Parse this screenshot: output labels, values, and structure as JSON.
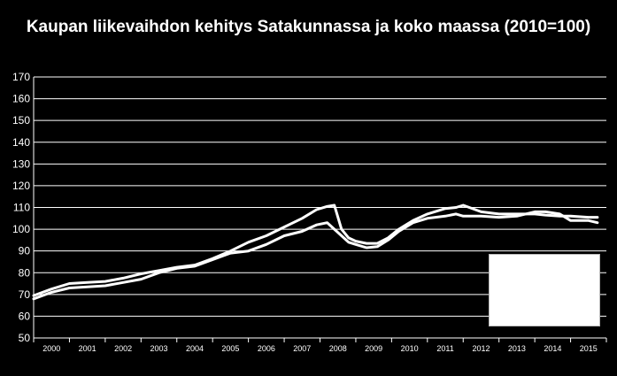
{
  "chart_data": {
    "type": "line",
    "title": "Kaupan liikevaihdon kehitys Satakunnassa ja koko maassa (2010=100)",
    "xlabel": "",
    "ylabel": "",
    "ylim": [
      50,
      170
    ],
    "yticks": [
      "50",
      "60",
      "70",
      "80",
      "90",
      "100",
      "110",
      "120",
      "130",
      "140",
      "150",
      "160",
      "170"
    ],
    "xticks": [
      "2000",
      "2001",
      "2002",
      "2003",
      "2004",
      "2005",
      "2006",
      "2007",
      "2008",
      "2009",
      "2010",
      "2011",
      "2012",
      "2013",
      "2014",
      "2015"
    ],
    "grid": true,
    "legend": "bottom-right",
    "line_color": "#ffffff",
    "series": [
      {
        "x": [
          2000.0,
          2000.5,
          2001.0,
          2001.5,
          2002.0,
          2002.5,
          2003.0,
          2003.5,
          2004.0,
          2004.5,
          2005.0,
          2005.5,
          2006.0,
          2006.5,
          2007.0,
          2007.5,
          2007.9,
          2008.2,
          2008.4,
          2008.6,
          2008.8,
          2009.0,
          2009.3,
          2009.6,
          2009.9,
          2010.2,
          2010.6,
          2011.0,
          2011.5,
          2011.8,
          2012.0,
          2012.5,
          2013.0,
          2013.5,
          2014.0,
          2014.3,
          2014.7,
          2015.0,
          2015.5,
          2015.75
        ],
        "y": [
          68,
          71,
          73,
          73.5,
          74,
          75.5,
          77,
          80,
          82,
          83,
          86,
          89,
          90,
          93,
          97,
          99,
          102,
          103,
          100,
          97,
          94,
          93,
          91.5,
          92,
          95,
          99,
          103,
          105,
          106,
          107,
          106,
          106,
          105.5,
          106,
          108,
          108,
          107,
          104,
          104,
          103
        ]
      },
      {
        "x": [
          2000.0,
          2000.5,
          2001.0,
          2001.5,
          2002.0,
          2002.5,
          2003.0,
          2003.5,
          2004.0,
          2004.5,
          2005.0,
          2005.5,
          2006.0,
          2006.5,
          2007.0,
          2007.5,
          2007.9,
          2008.2,
          2008.4,
          2008.6,
          2008.8,
          2009.0,
          2009.3,
          2009.6,
          2009.9,
          2010.2,
          2010.6,
          2011.0,
          2011.5,
          2011.8,
          2012.0,
          2012.5,
          2013.0,
          2013.5,
          2014.0,
          2014.3,
          2014.7,
          2015.0,
          2015.5,
          2015.75
        ],
        "y": [
          69.5,
          72.5,
          75,
          75.5,
          76,
          77.5,
          79.5,
          81,
          82.5,
          83.5,
          86.5,
          90,
          94,
          97,
          101,
          105,
          109,
          110.5,
          111,
          100,
          96,
          94.5,
          93.5,
          93.5,
          96,
          100,
          104,
          107,
          109.5,
          110,
          111,
          108,
          107,
          107,
          107,
          106.5,
          106,
          106,
          105.5,
          105.5
        ]
      }
    ]
  }
}
